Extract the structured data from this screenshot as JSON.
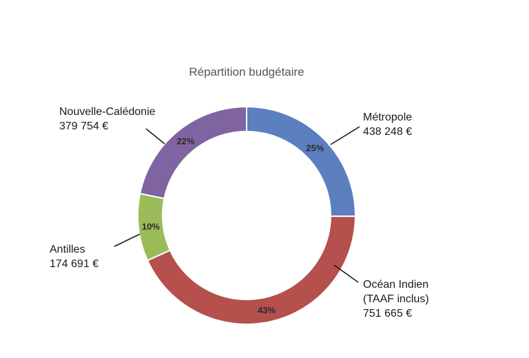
{
  "chart_data": {
    "type": "pie",
    "variant": "donut",
    "title": "Répartition budgétaire",
    "legend": "none",
    "slices": [
      {
        "name_lines": [
          "Métropole"
        ],
        "value_text": "438 248 €",
        "value": 438248,
        "percent_label": "25%",
        "color": "#5b7fbf"
      },
      {
        "name_lines": [
          "Océan Indien",
          "(TAAF inclus)"
        ],
        "value_text": "751 665 €",
        "value": 751665,
        "percent_label": "43%",
        "color": "#b5504d"
      },
      {
        "name_lines": [
          "Antilles"
        ],
        "value_text": "174 691 €",
        "value": 174691,
        "percent_label": "10%",
        "color": "#9bbb59"
      },
      {
        "name_lines": [
          "Nouvelle-Calédonie"
        ],
        "value_text": "379 754 €",
        "value": 379754,
        "percent_label": "22%",
        "color": "#8064a2"
      }
    ]
  }
}
